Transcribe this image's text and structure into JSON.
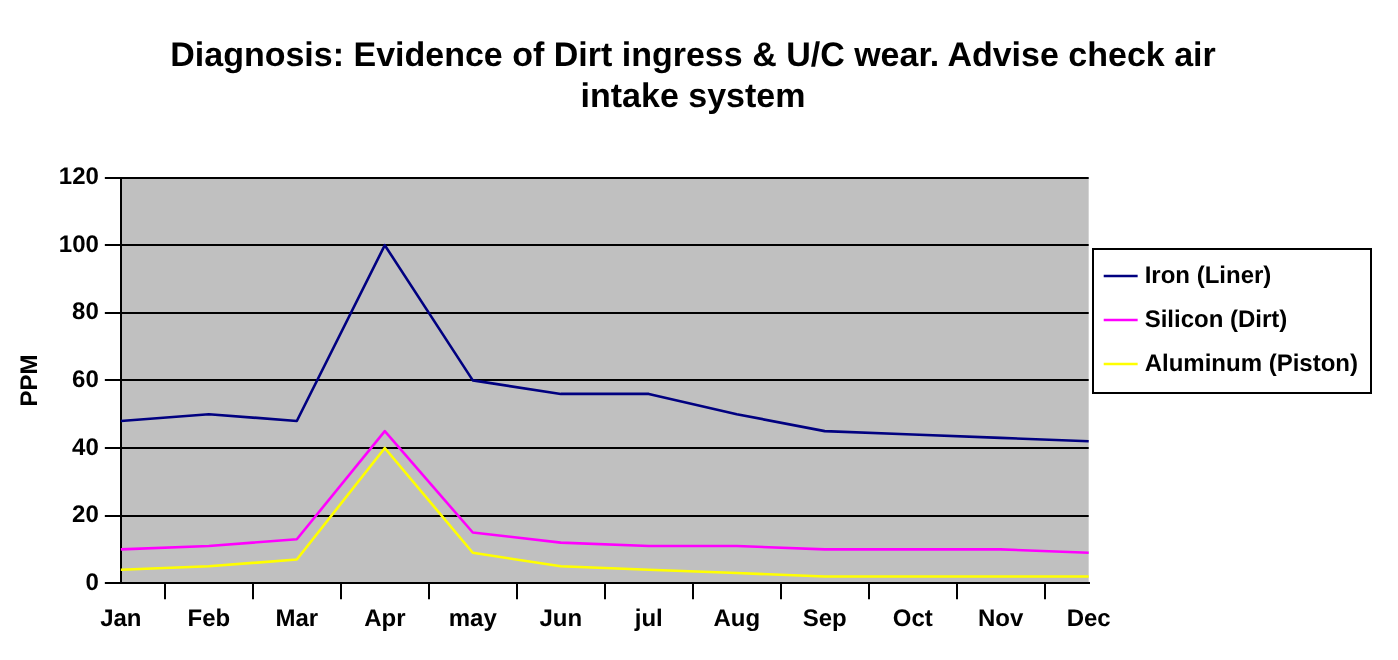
{
  "chart_data": {
    "type": "line",
    "title": "Diagnosis: Evidence of Dirt ingress & U/C wear. Advise check air intake system",
    "ylabel": "PPM",
    "categories": [
      "Jan",
      "Feb",
      "Mar",
      "Apr",
      "may",
      "Jun",
      "jul",
      "Aug",
      "Sep",
      "Oct",
      "Nov",
      "Dec"
    ],
    "series": [
      {
        "name": "Iron (Liner)",
        "color": "#000080",
        "values": [
          48,
          50,
          48,
          100,
          60,
          56,
          56,
          50,
          45,
          44,
          43,
          42
        ]
      },
      {
        "name": "Silicon (Dirt)",
        "color": "#ff00ff",
        "values": [
          10,
          11,
          13,
          45,
          15,
          12,
          11,
          11,
          10,
          10,
          10,
          9
        ]
      },
      {
        "name": "Aluminum (Piston)",
        "color": "#ffff00",
        "values": [
          4,
          5,
          7,
          40,
          9,
          5,
          4,
          3,
          2,
          2,
          2,
          2
        ]
      }
    ],
    "ylim": [
      0,
      120
    ],
    "yticks": [
      0,
      20,
      40,
      60,
      80,
      100,
      120
    ],
    "grid": "y",
    "legend": "right",
    "marker": "none"
  }
}
